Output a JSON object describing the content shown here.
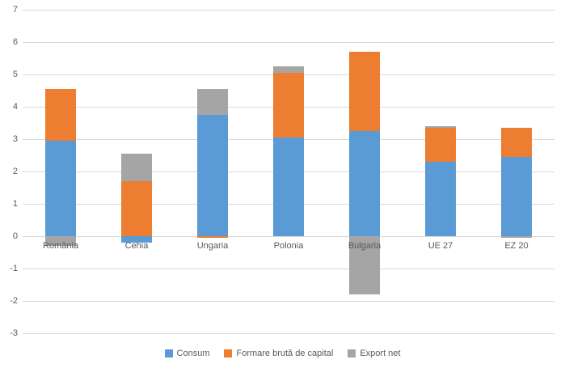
{
  "styles": {
    "background": "#FFFFFF",
    "grid_color": "#D9D9D9",
    "text_color": "#595959"
  },
  "chart_data": {
    "type": "bar",
    "stacked": true,
    "title": "",
    "xlabel": "",
    "ylabel": "",
    "grid": true,
    "legend_position": "bottom",
    "categories": [
      "România",
      "Cehia",
      "Ungaria",
      "Polonia",
      "Bulgaria",
      "UE 27",
      "EZ 20"
    ],
    "series": [
      {
        "name": "Consum",
        "color": "#5B9BD5",
        "values": [
          2.95,
          -0.2,
          3.75,
          3.05,
          3.25,
          2.3,
          2.45
        ]
      },
      {
        "name": "Formare brută de capital",
        "color": "#ED7D31",
        "values": [
          1.6,
          1.7,
          -0.05,
          2.0,
          2.45,
          1.05,
          0.9
        ]
      },
      {
        "name": "Export net",
        "color": "#A5A5A5",
        "values": [
          -0.3,
          0.85,
          0.8,
          0.2,
          -1.8,
          0.05,
          -0.05
        ]
      }
    ],
    "stack_totals_positive": [
      4.55,
      2.55,
      4.55,
      5.25,
      5.7,
      3.4,
      3.35
    ],
    "y_axis": {
      "min": -3,
      "max": 7,
      "step": 1,
      "ticks": [
        7,
        6,
        5,
        4,
        3,
        2,
        1,
        0,
        -1,
        -2,
        -3
      ]
    }
  }
}
